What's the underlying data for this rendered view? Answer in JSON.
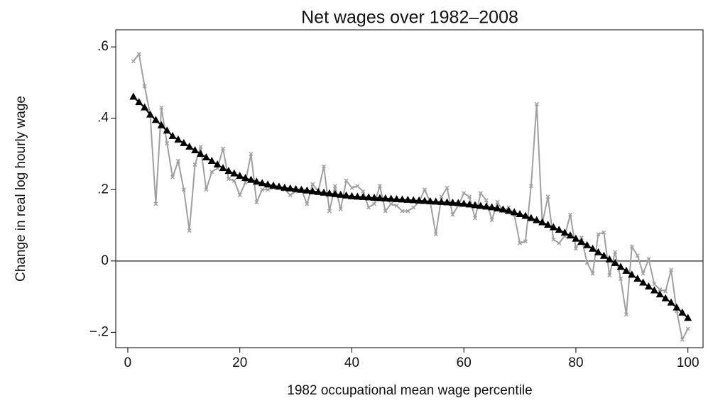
{
  "chart_data": {
    "type": "line",
    "title": "Net wages over 1982–2008",
    "x_label": "1982 occupational mean wage percentile",
    "y_label": "Change in real log hourly wage",
    "x": [
      1,
      2,
      3,
      4,
      5,
      6,
      7,
      8,
      9,
      10,
      11,
      12,
      13,
      14,
      15,
      16,
      17,
      18,
      19,
      20,
      21,
      22,
      23,
      24,
      25,
      26,
      27,
      28,
      29,
      30,
      31,
      32,
      33,
      34,
      35,
      36,
      37,
      38,
      39,
      40,
      41,
      42,
      43,
      44,
      45,
      46,
      47,
      48,
      49,
      50,
      51,
      52,
      53,
      54,
      55,
      56,
      57,
      58,
      59,
      60,
      61,
      62,
      63,
      64,
      65,
      66,
      67,
      68,
      69,
      70,
      71,
      72,
      73,
      74,
      75,
      76,
      77,
      78,
      79,
      80,
      81,
      82,
      83,
      84,
      85,
      86,
      87,
      88,
      89,
      90,
      91,
      92,
      93,
      94,
      95,
      96,
      97,
      98,
      99,
      100
    ],
    "series": [
      {
        "color": "#a0a0a0",
        "marker": "x",
        "values": [
          0.56,
          0.58,
          0.49,
          0.41,
          0.16,
          0.43,
          0.33,
          0.235,
          0.28,
          0.2,
          0.085,
          0.27,
          0.32,
          0.2,
          0.25,
          0.26,
          0.315,
          0.23,
          0.225,
          0.185,
          0.22,
          0.3,
          0.165,
          0.2,
          0.2,
          0.205,
          0.205,
          0.2,
          0.185,
          0.195,
          0.2,
          0.16,
          0.215,
          0.195,
          0.265,
          0.14,
          0.21,
          0.145,
          0.225,
          0.205,
          0.21,
          0.195,
          0.15,
          0.16,
          0.21,
          0.14,
          0.16,
          0.155,
          0.14,
          0.14,
          0.15,
          0.165,
          0.2,
          0.165,
          0.075,
          0.18,
          0.205,
          0.13,
          0.155,
          0.19,
          0.18,
          0.12,
          0.19,
          0.17,
          0.115,
          0.165,
          0.14,
          0.15,
          0.13,
          0.05,
          0.055,
          0.21,
          0.44,
          0.105,
          0.18,
          0.06,
          0.05,
          0.07,
          0.13,
          0.035,
          0.065,
          -0.005,
          -0.035,
          0.075,
          0.08,
          -0.04,
          0.025,
          -0.05,
          -0.15,
          0.04,
          0.015,
          -0.035,
          0.005,
          -0.065,
          -0.08,
          -0.085,
          -0.025,
          -0.14,
          -0.22,
          -0.19
        ]
      },
      {
        "color": "#000000",
        "marker": "triangle",
        "values": [
          0.46,
          0.445,
          0.43,
          0.41,
          0.395,
          0.38,
          0.365,
          0.35,
          0.34,
          0.33,
          0.32,
          0.31,
          0.3,
          0.29,
          0.28,
          0.27,
          0.26,
          0.252,
          0.245,
          0.238,
          0.232,
          0.227,
          0.222,
          0.218,
          0.214,
          0.211,
          0.208,
          0.205,
          0.203,
          0.201,
          0.199,
          0.197,
          0.195,
          0.193,
          0.191,
          0.189,
          0.187,
          0.185,
          0.183,
          0.181,
          0.18,
          0.179,
          0.178,
          0.177,
          0.176,
          0.175,
          0.174,
          0.173,
          0.172,
          0.171,
          0.17,
          0.169,
          0.168,
          0.167,
          0.166,
          0.165,
          0.164,
          0.163,
          0.162,
          0.16,
          0.158,
          0.156,
          0.154,
          0.152,
          0.15,
          0.147,
          0.144,
          0.14,
          0.136,
          0.131,
          0.126,
          0.12,
          0.114,
          0.108,
          0.101,
          0.094,
          0.087,
          0.079,
          0.071,
          0.062,
          0.053,
          0.044,
          0.034,
          0.024,
          0.014,
          0.004,
          -0.006,
          -0.017,
          -0.028,
          -0.039,
          -0.05,
          -0.061,
          -0.072,
          -0.083,
          -0.094,
          -0.105,
          -0.117,
          -0.131,
          -0.145,
          -0.16
        ]
      }
    ],
    "xlim": [
      -2.15,
      102.7
    ],
    "xticks": [
      0,
      20,
      40,
      60,
      80,
      100
    ],
    "ylim": [
      -0.243,
      0.648
    ],
    "yticks": [
      {
        "value": -0.2,
        "label": "−.2"
      },
      0,
      {
        "value": 0.2,
        "label": ".2"
      },
      {
        "value": 0.4,
        "label": ".4"
      },
      {
        "value": 0.6,
        "label": ".6"
      }
    ],
    "reference_line": 0
  }
}
